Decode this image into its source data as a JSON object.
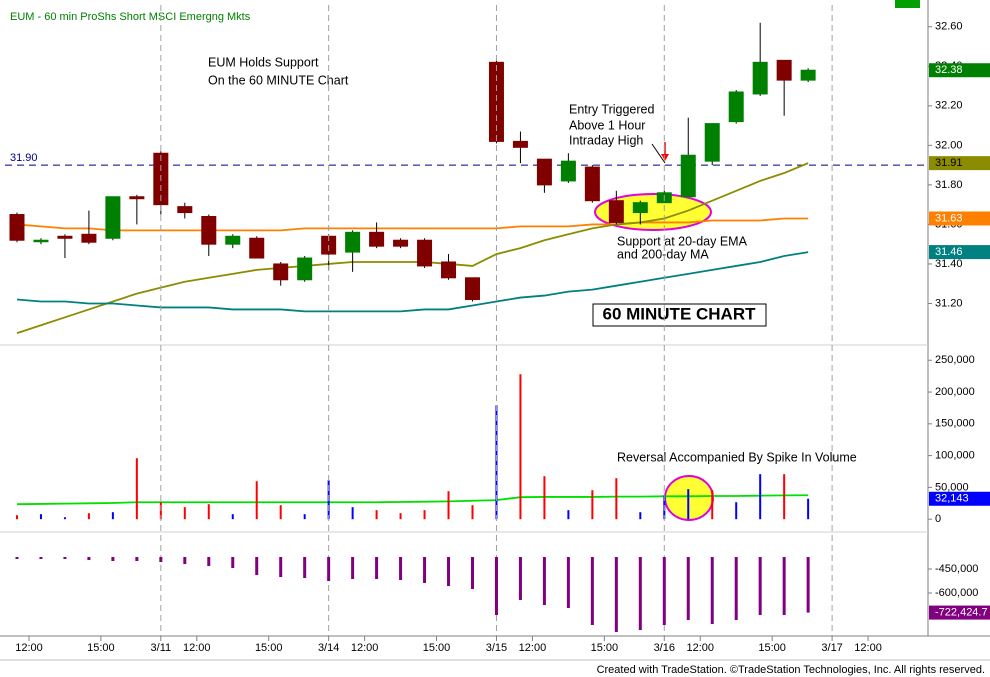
{
  "chart_data": [
    {
      "type": "candlestick",
      "title": "EUM - 60 min  ProShs Short MSCI Emergng Mkts",
      "xlim": [
        -0.5,
        38
      ],
      "ylim": [
        30.99,
        32.71
      ],
      "yticks": [
        {
          "value": 31.2,
          "label": "31.20"
        },
        {
          "value": 31.4,
          "label": "31.40"
        },
        {
          "value": 31.6,
          "label": "31.60"
        },
        {
          "value": 31.8,
          "label": "31.80"
        },
        {
          "value": 32,
          "label": "32.00"
        },
        {
          "value": 32.2,
          "label": "32.20"
        },
        {
          "value": 32.4,
          "label": "32.40"
        },
        {
          "value": 32.6,
          "label": "32.60"
        }
      ],
      "x": [
        0,
        1,
        2,
        3,
        4,
        5,
        6,
        7,
        8,
        9,
        10,
        11,
        12,
        13,
        14,
        15,
        16,
        17,
        18,
        19,
        20,
        21,
        22,
        23,
        24,
        25,
        26,
        27,
        28,
        29,
        30,
        31,
        32,
        33
      ],
      "open": [
        31.65,
        31.52,
        31.54,
        31.55,
        31.53,
        31.74,
        31.96,
        31.69,
        31.64,
        31.5,
        31.53,
        31.4,
        31.32,
        31.54,
        31.46,
        31.56,
        31.52,
        31.52,
        31.41,
        31.33,
        32.42,
        32.02,
        31.93,
        31.82,
        31.89,
        31.72,
        31.66,
        31.71,
        31.74,
        31.92,
        32.12,
        32.26,
        32.43,
        32.33
      ],
      "high": [
        31.66,
        31.53,
        31.55,
        31.67,
        31.74,
        31.75,
        31.97,
        31.71,
        31.65,
        31.55,
        31.54,
        31.41,
        31.44,
        31.55,
        31.57,
        31.61,
        31.53,
        31.53,
        31.45,
        31.33,
        32.43,
        32.07,
        31.93,
        31.96,
        31.9,
        31.77,
        31.72,
        31.77,
        32.14,
        32.11,
        32.28,
        32.62,
        32.43,
        32.39
      ],
      "low": [
        31.51,
        31.5,
        31.43,
        31.5,
        31.52,
        31.6,
        31.65,
        31.63,
        31.44,
        31.48,
        31.43,
        31.29,
        31.31,
        31.37,
        31.36,
        31.48,
        31.48,
        31.38,
        31.32,
        31.21,
        32.01,
        31.91,
        31.76,
        31.81,
        31.71,
        31.6,
        31.6,
        31.71,
        31.74,
        31.9,
        32.11,
        32.25,
        32.15,
        32.32
      ],
      "close": [
        31.52,
        31.52,
        31.53,
        31.51,
        31.74,
        31.73,
        31.7,
        31.66,
        31.5,
        31.54,
        31.43,
        31.32,
        31.43,
        31.45,
        31.56,
        31.49,
        31.49,
        31.39,
        31.33,
        31.22,
        32.02,
        31.99,
        31.8,
        31.92,
        31.72,
        31.61,
        31.71,
        31.76,
        31.95,
        32.11,
        32.27,
        32.42,
        32.33,
        32.38
      ],
      "up_color": "#008000",
      "down_color": "#800000",
      "last_label": "32.38",
      "reference_line": {
        "value": 31.9,
        "label": "31.90",
        "color": "#000080"
      },
      "lines": [
        {
          "color": "#ff8000",
          "last_label": "31.63",
          "values": [
            31.6,
            31.59,
            31.58,
            31.58,
            31.57,
            31.57,
            31.57,
            31.57,
            31.57,
            31.57,
            31.57,
            31.57,
            31.58,
            31.58,
            31.58,
            31.58,
            31.58,
            31.58,
            31.58,
            31.58,
            31.58,
            31.59,
            31.59,
            31.59,
            31.6,
            31.6,
            31.61,
            31.61,
            31.61,
            31.62,
            31.62,
            31.62,
            31.63,
            31.63
          ]
        },
        {
          "color": "#8c8c00",
          "last_label": "31.91",
          "values": [
            31.05,
            31.09,
            31.13,
            31.17,
            31.21,
            31.25,
            31.28,
            31.31,
            31.33,
            31.35,
            31.37,
            31.38,
            31.39,
            31.4,
            31.41,
            31.41,
            31.41,
            31.41,
            31.4,
            31.39,
            31.45,
            31.48,
            31.52,
            31.55,
            31.58,
            31.6,
            31.61,
            31.63,
            31.67,
            31.72,
            31.77,
            31.82,
            31.86,
            31.91
          ]
        },
        {
          "color": "#008080",
          "last_label": "31.46",
          "values": [
            31.22,
            31.21,
            31.21,
            31.2,
            31.2,
            31.19,
            31.18,
            31.18,
            31.18,
            31.17,
            31.17,
            31.17,
            31.16,
            31.16,
            31.16,
            31.16,
            31.16,
            31.17,
            31.17,
            31.19,
            31.21,
            31.23,
            31.24,
            31.26,
            31.27,
            31.29,
            31.31,
            31.33,
            31.35,
            31.37,
            31.39,
            31.41,
            31.44,
            31.46
          ]
        }
      ],
      "annotations": [
        {
          "lines": [
            "EUM Holds Support",
            "On the 60 MINUTE Chart"
          ]
        },
        {
          "lines": [
            "Entry Triggered",
            "Above 1 Hour",
            "Intraday High"
          ]
        },
        {
          "lines": [
            "Support at 20-day EMA",
            "and 200-day MA"
          ]
        },
        {
          "lines": [
            "60 MINUTE CHART"
          ]
        }
      ]
    },
    {
      "type": "bar",
      "xlim": [
        -0.5,
        38
      ],
      "ylim": [
        -17000,
        274000
      ],
      "yticks": [
        0,
        {
          "value": 50000,
          "label": "50,000"
        },
        {
          "value": 100000,
          "label": "100,000"
        },
        {
          "value": 150000,
          "label": "150,000"
        },
        {
          "value": 200000,
          "label": "200,000"
        },
        {
          "value": 250000,
          "label": "250,000"
        }
      ],
      "x": [
        0,
        1,
        2,
        3,
        4,
        5,
        6,
        7,
        8,
        9,
        10,
        11,
        12,
        13,
        14,
        15,
        16,
        17,
        18,
        19,
        20,
        21,
        22,
        23,
        24,
        25,
        26,
        27,
        28,
        29,
        30,
        31,
        32,
        33
      ],
      "values": [
        6300,
        7900,
        3100,
        9400,
        11000,
        95900,
        26700,
        18900,
        23600,
        7900,
        59700,
        22000,
        7900,
        61300,
        18900,
        14200,
        9400,
        14200,
        44000,
        22000,
        179200,
        228000,
        67600,
        14200,
        45600,
        64500,
        11000,
        37700,
        47200,
        45600,
        26700,
        70800,
        70800,
        32143
      ],
      "colors": [
        "#ff0000",
        "#0000ff",
        "#0000ff",
        "#ff0000",
        "#0000ff",
        "#ff0000",
        "#ff0000",
        "#ff0000",
        "#ff0000",
        "#0000ff",
        "#ff0000",
        "#ff0000",
        "#0000ff",
        "#0000ff",
        "#0000ff",
        "#ff0000",
        "#ff0000",
        "#ff0000",
        "#ff0000",
        "#ff0000",
        "#0000ff",
        "#ff0000",
        "#ff0000",
        "#0000ff",
        "#ff0000",
        "#ff0000",
        "#0000ff",
        "#0000ff",
        "#0000ff",
        "#ff0000",
        "#0000ff",
        "#0000ff",
        "#ff0000",
        "#0000ff"
      ],
      "last_label": "32,143",
      "last_color": "#0000ff",
      "lines": [
        {
          "color": "#00e000",
          "values": [
            23600,
            24000,
            24500,
            25000,
            25500,
            26700,
            26700,
            26700,
            26700,
            26700,
            26700,
            26700,
            26700,
            26700,
            26700,
            26700,
            27000,
            27500,
            28000,
            29000,
            30000,
            34600,
            35000,
            35000,
            35000,
            35500,
            35500,
            36000,
            36000,
            36500,
            36500,
            37000,
            37500,
            37700
          ]
        }
      ],
      "annotations": [
        {
          "lines": [
            "Reversal Accompanied By Spike In Volume"
          ]
        }
      ]
    },
    {
      "type": "bar",
      "xlim": [
        -0.5,
        38
      ],
      "ylim": [
        -868750,
        -375000
      ],
      "yticks": [
        {
          "value": -600000,
          "label": "-600,000"
        },
        {
          "value": -450000,
          "label": "-450,000"
        }
      ],
      "x": [
        0,
        1,
        2,
        3,
        4,
        5,
        6,
        7,
        8,
        9,
        10,
        11,
        12,
        13,
        14,
        15,
        16,
        17,
        18,
        19,
        20,
        21,
        22,
        23,
        24,
        25,
        26,
        27,
        28,
        29,
        30,
        31,
        32,
        33
      ],
      "values": [
        -387500,
        -387500,
        -387500,
        -393750,
        -400000,
        -400000,
        -406250,
        -418750,
        -431250,
        -443750,
        -487500,
        -500000,
        -506250,
        -525000,
        -512500,
        -512500,
        -518750,
        -537500,
        -556250,
        -575000,
        -737500,
        -643750,
        -675000,
        -693750,
        -800000,
        -843750,
        -831250,
        -800000,
        -768750,
        -793750,
        -768750,
        -737500,
        -737500,
        -722424.7
      ],
      "color": "#800080",
      "last_label": "-722,424.7",
      "last_color": "#800080",
      "xticks": [
        {
          "value": 0.5,
          "label": "12:00"
        },
        {
          "value": 3.5,
          "label": "15:00"
        },
        {
          "value": 6,
          "label": "3/11"
        },
        {
          "value": 7.5,
          "label": "12:00"
        },
        {
          "value": 10.5,
          "label": "15:00"
        },
        {
          "value": 13,
          "label": "3/14"
        },
        {
          "value": 14.5,
          "label": "12:00"
        },
        {
          "value": 17.5,
          "label": "15:00"
        },
        {
          "value": 20,
          "label": "3/15"
        },
        {
          "value": 21.5,
          "label": "12:00"
        },
        {
          "value": 24.5,
          "label": "15:00"
        },
        {
          "value": 27,
          "label": "3/16"
        },
        {
          "value": 28.5,
          "label": "12:00"
        },
        {
          "value": 31.5,
          "label": "15:00"
        },
        {
          "value": 34,
          "label": "3/17"
        },
        {
          "value": 35.5,
          "label": "12:00"
        }
      ]
    }
  ],
  "footer": "Created with TradeStation. ©TradeStation Technologies, Inc. All rights reserved."
}
